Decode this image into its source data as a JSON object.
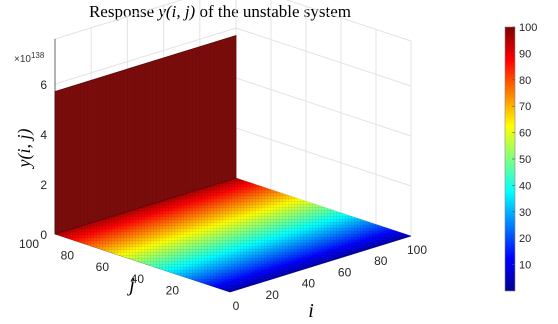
{
  "chart_data": {
    "type": "surface",
    "title_prefix": "Response ",
    "title_math": "y(i, j)",
    "title_suffix": " of the unstable system",
    "xlabel": "i",
    "ylabel": "j",
    "zlabel": "y(i, j)",
    "x_range": [
      0,
      100
    ],
    "y_range": [
      0,
      100
    ],
    "xticks": [
      "0",
      "20",
      "40",
      "60",
      "80",
      "100"
    ],
    "yticks": [
      "20",
      "40",
      "60",
      "80",
      "100"
    ],
    "zticks": [
      "0",
      "2",
      "4",
      "6"
    ],
    "z_exponent_base": "×10",
    "z_exponent": "138",
    "z_wall_value": 5.7,
    "z_wall_at_j": 100,
    "z_floor_value": 0,
    "grid": true,
    "colormap": "jet",
    "colorbar": {
      "ticks": [
        "10",
        "20",
        "30",
        "40",
        "50",
        "60",
        "70",
        "80",
        "90",
        "100"
      ],
      "range": [
        0,
        100
      ]
    }
  }
}
